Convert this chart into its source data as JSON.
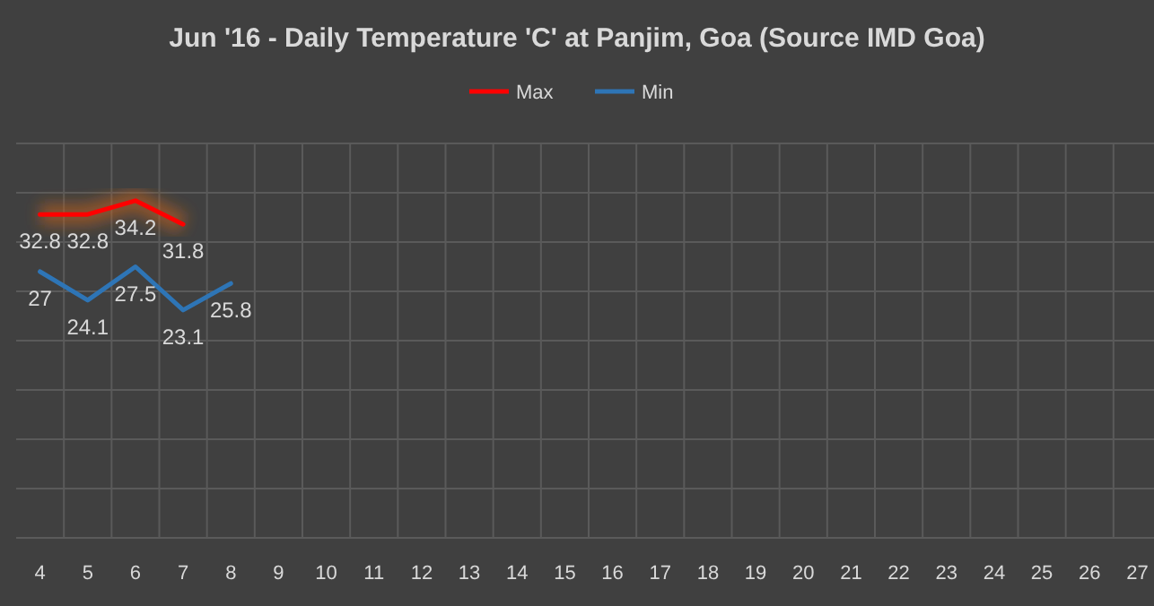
{
  "chart_data": {
    "type": "line",
    "title": "Jun '16 - Daily Temperature 'C' at Panjim, Goa (Source IMD Goa)",
    "categories": [
      "4",
      "5",
      "6",
      "7",
      "8",
      "9",
      "10",
      "11",
      "12",
      "13",
      "14",
      "15",
      "16",
      "17",
      "18",
      "19",
      "20",
      "21",
      "22",
      "23",
      "24",
      "25",
      "26",
      "27"
    ],
    "series": [
      {
        "name": "Max",
        "color": "#ff0000",
        "values": [
          32.8,
          32.8,
          34.2,
          31.8,
          null,
          null,
          null,
          null,
          null,
          null,
          null,
          null,
          null,
          null,
          null,
          null,
          null,
          null,
          null,
          null,
          null,
          null,
          null,
          null
        ]
      },
      {
        "name": "Min",
        "color": "#2e75b6",
        "values": [
          27,
          24.1,
          27.5,
          23.1,
          25.8,
          null,
          null,
          null,
          null,
          null,
          null,
          null,
          null,
          null,
          null,
          null,
          null,
          null,
          null,
          null,
          null,
          null,
          null,
          null
        ]
      }
    ],
    "ylim": [
      0,
      40
    ],
    "yticks": [
      {
        "value": 0,
        "label": null
      },
      {
        "value": 5,
        "label": null
      },
      {
        "value": 10,
        "label": null
      },
      {
        "value": 15,
        "label": null
      },
      {
        "value": 20,
        "label": null
      },
      {
        "value": 25,
        "label": null
      },
      {
        "value": 30,
        "label": null
      },
      {
        "value": 35,
        "label": null
      },
      {
        "value": 40,
        "label": null
      }
    ],
    "tick_labels": "x",
    "grid": true,
    "legend": "top",
    "data_labels": true,
    "marker": "none",
    "line_style": "solid"
  }
}
